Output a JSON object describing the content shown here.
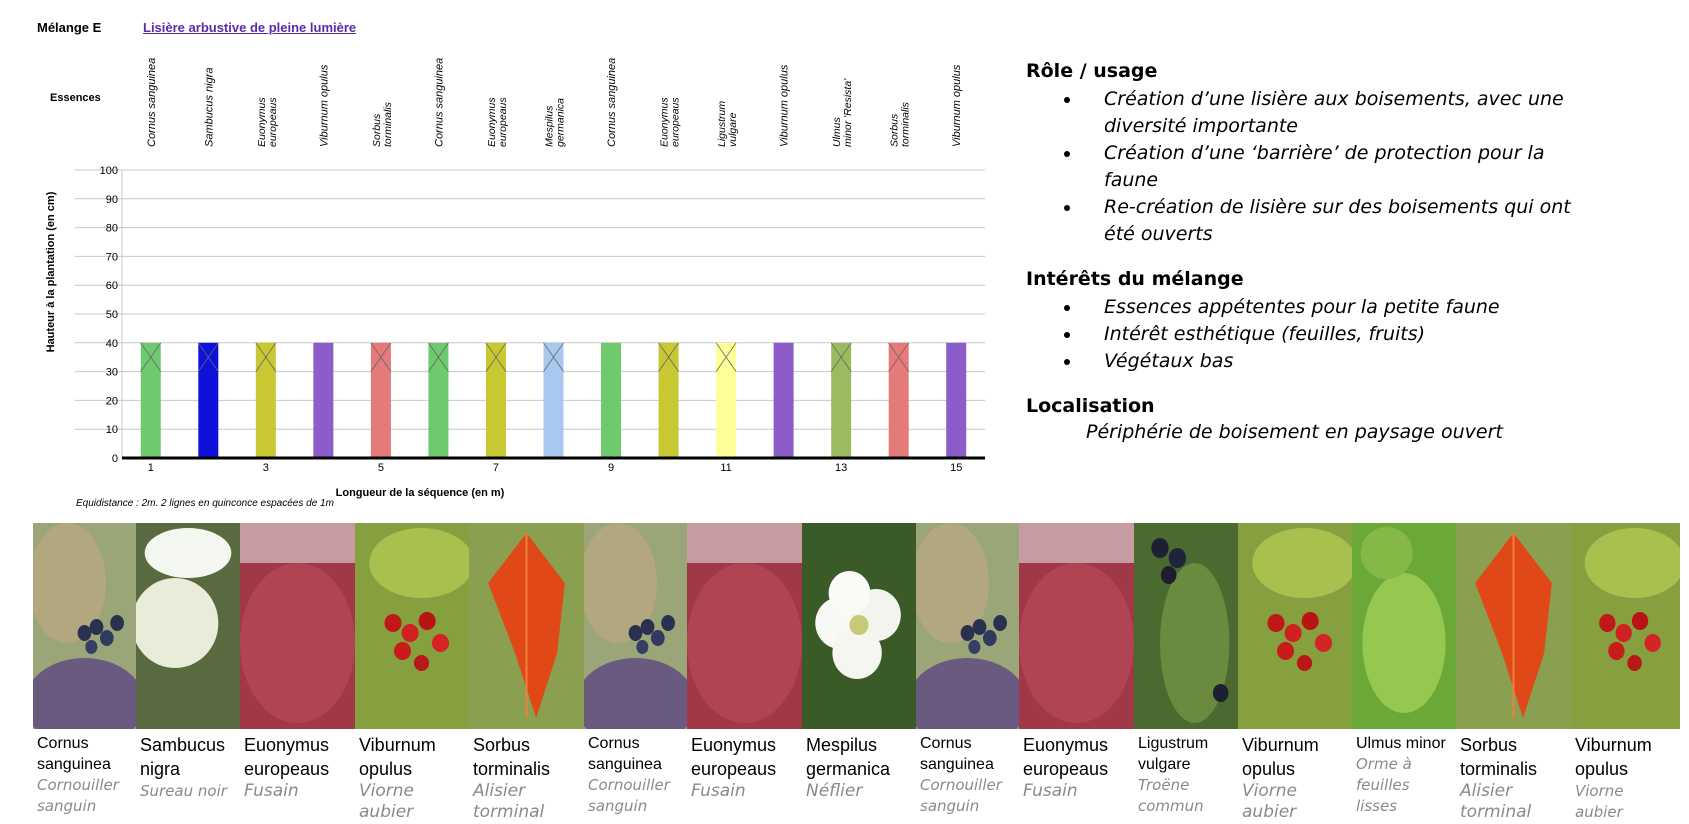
{
  "header": {
    "title": "Mélange E",
    "link": "Lisière arbustive de pleine lumière"
  },
  "chart_data": {
    "type": "bar",
    "essences_label": "Essences",
    "categories": [
      "Cornus sanguinea",
      "Sambucus nigra",
      "Euonymus europeaus",
      "Viburnum opulus",
      "Sorbus torminalis",
      "Cornus sanguinea",
      "Euonymus europeaus",
      "Mespilus germanica",
      "Cornus sanguinea",
      "Euonymus europeaus",
      "Ligustrum vulgare",
      "Viburnum opulus",
      "Ulmus minor 'Resista'",
      "Sorbus torminalis",
      "Viburnum opulus"
    ],
    "values": [
      40,
      40,
      40,
      40,
      40,
      40,
      40,
      40,
      40,
      40,
      40,
      40,
      40,
      40,
      40
    ],
    "bar_colors": [
      "#6fc96f",
      "#1010dd",
      "#c8c832",
      "#8c5cc8",
      "#e57a7a",
      "#6fc96f",
      "#c8c832",
      "#a8c8f0",
      "#6fc96f",
      "#c8c832",
      "#ffff99",
      "#8c5cc8",
      "#9abb60",
      "#e57a7a",
      "#8c5cc8"
    ],
    "crossed": [
      true,
      true,
      true,
      false,
      true,
      true,
      true,
      true,
      false,
      true,
      true,
      false,
      true,
      true,
      false
    ],
    "ylabel": "Hauteur à la plantation (en cm)",
    "xlabel": "Longueur de la séquence (en m)",
    "yticks": [
      "0",
      "10",
      "20",
      "30",
      "40",
      "50",
      "60",
      "70",
      "80",
      "90",
      "100"
    ],
    "ylim": [
      0,
      100
    ],
    "xticks": [
      "1",
      "3",
      "5",
      "7",
      "9",
      "11",
      "13",
      "15"
    ],
    "note": "Equidistance : 2m. 2 lignes en quinconce espacées de 1m",
    "grid": true
  },
  "right": {
    "role_title": "Rôle / usage",
    "role_items": [
      "Création d’une lisière aux boisements, avec une diversité importante",
      "Création d’une ‘barrière’ de protection pour la faune",
      "Re-création de lisière sur des boisements qui ont été ouverts"
    ],
    "interest_title": "Intérêts du mélange",
    "interest_items": [
      "Essences appétentes pour la petite faune",
      "Intérêt esthétique (feuilles, fruits)",
      "Végétaux bas"
    ],
    "loc_title": "Localisation",
    "loc_text": "Périphérie de boisement en paysage ouvert"
  },
  "gallery": [
    {
      "latin": "Cornus sanguinea",
      "common": "Cornouiller sanguin",
      "photo": "dogwood-berries",
      "accent": "#4a6a2a"
    },
    {
      "latin": "Sambucus nigra",
      "common": "Sureau noir",
      "photo": "elder-flowers",
      "accent": "#6a7a50"
    },
    {
      "latin": "Euonymus europeaus",
      "common": "Fusain",
      "photo": "spindle-foliage",
      "accent": "#8a3a40"
    },
    {
      "latin": "Viburnum opulus",
      "common": "Viorne aubier",
      "photo": "guelder-rose-berries",
      "accent": "#5a7a30"
    },
    {
      "latin": "Sorbus torminalis",
      "common": "Alisier torminal",
      "photo": "red-leaf",
      "accent": "#c84020"
    },
    {
      "latin": "Cornus sanguinea",
      "common": "Cornouiller sanguin",
      "photo": "dogwood-berries",
      "accent": "#4a6a2a"
    },
    {
      "latin": "Euonymus europeaus",
      "common": "Fusain",
      "photo": "spindle-foliage",
      "accent": "#8a3a40"
    },
    {
      "latin": "Mespilus germanica",
      "common": "Néflier",
      "photo": "medlar-flower",
      "accent": "#3a5a28"
    },
    {
      "latin": "Cornus sanguinea",
      "common": "Cornouiller sanguin",
      "photo": "dogwood-berries",
      "accent": "#4a6a2a"
    },
    {
      "latin": "Euonymus europeaus",
      "common": "Fusain",
      "photo": "spindle-foliage",
      "accent": "#8a3a40"
    },
    {
      "latin": "Ligustrum vulgare",
      "common": "Troëne commun",
      "photo": "privet-berries",
      "accent": "#3a5a22"
    },
    {
      "latin": "Viburnum opulus",
      "common": "Viorne aubier",
      "photo": "guelder-rose-berries",
      "accent": "#5a7a30"
    },
    {
      "latin": "Ulmus minor",
      "common": "Orme à feuilles lisses",
      "photo": "elm-leaves",
      "accent": "#7ab040"
    },
    {
      "latin": "Sorbus torminalis",
      "common": "Alisier torminal",
      "photo": "red-leaf",
      "accent": "#c84020"
    },
    {
      "latin": "Viburnum opulus",
      "common": "Viorne aubier",
      "photo": "guelder-rose-berries",
      "accent": "#5a7a30"
    }
  ]
}
